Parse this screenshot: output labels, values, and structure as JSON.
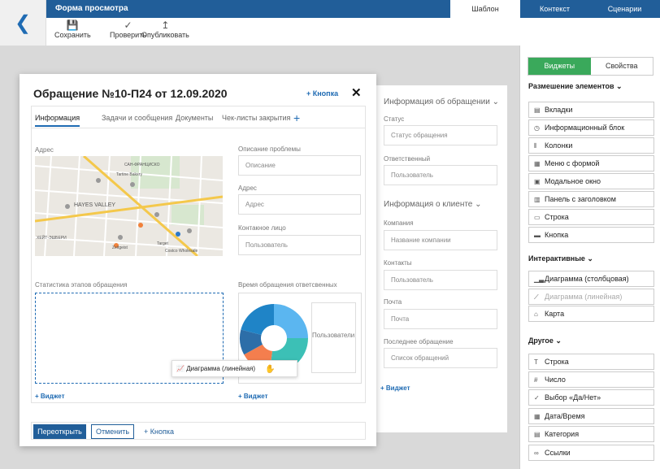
{
  "header": {
    "title": "Форма просмотра",
    "tabs": [
      {
        "label": "Шаблон",
        "active": true
      },
      {
        "label": "Контекст",
        "active": false
      },
      {
        "label": "Сценарии",
        "active": false
      }
    ]
  },
  "toolbar": {
    "save_label": "Сохранить",
    "check_label": "Проверить",
    "publish_label": "Опубликовать"
  },
  "modal": {
    "title": "Обращение №10-П24 от 12.09.2020",
    "add_button": "+ Кнопка",
    "close": "✕",
    "tabs": [
      "Информация",
      "Задачи и сообщения",
      "Документы",
      "Чек-листы закрытия"
    ],
    "tab_add": "+",
    "address_label": "Адрес",
    "map_labels": [
      "САН-ФРАНЦИСКО",
      "HAYES VALLEY",
      "ХЕЙТ-ЭШБЕРИ",
      "Target",
      "Costco Wholesale",
      "Tartine Bakery",
      "Zeitgeist"
    ],
    "fields": [
      {
        "label": "Описание проблемы",
        "placeholder": "Описание"
      },
      {
        "label": "Адрес",
        "placeholder": "Адрес"
      },
      {
        "label": "Контакное лицо",
        "placeholder": "Пользователь"
      }
    ],
    "stats_label": "Статистика этапов обращения",
    "time_label": "Время обращения ответсвенных",
    "widget_add": "+ Виджет",
    "users_label": "Пользователи",
    "drag_label": "Диаграмма (линейная)",
    "footer": {
      "reopen": "Переоткрыть",
      "cancel": "Отменить",
      "add_button": "+ Кнопка"
    }
  },
  "donut": {
    "colors": [
      "#5bb6f0",
      "#3cc0b6",
      "#f47e4e",
      "#2d6ea8",
      "#1f84c7"
    ],
    "values": [
      25,
      27,
      15,
      12,
      21
    ]
  },
  "bg_form": {
    "section1": "Информация об обращении",
    "status_label": "Статус",
    "status_placeholder": "Статус обращения",
    "resp_label": "Ответственный",
    "resp_placeholder": "Пользователь",
    "section2": "Информация о клиенте",
    "company_label": "Компания",
    "company_placeholder": "Название компании",
    "contacts_label": "Контакты",
    "contacts_placeholder": "Пользователь",
    "mail_label": "Почта",
    "mail_placeholder": "Почта",
    "last_label": "Последнее обращение",
    "last_placeholder": "Список обращений",
    "widget_add": "+ Виджет"
  },
  "right_panel": {
    "tabs": [
      {
        "label": "Виджеты",
        "active": true
      },
      {
        "label": "Свойства",
        "active": false
      }
    ],
    "sections": [
      {
        "title": "Размешение элементов",
        "items": [
          {
            "label": "Вкладки",
            "icon": "tabs-icon"
          },
          {
            "label": "Информационный блок",
            "icon": "info-block-icon"
          },
          {
            "label": "Колонки",
            "icon": "columns-icon"
          },
          {
            "label": "Меню с формой",
            "icon": "menu-form-icon"
          },
          {
            "label": "Модальное окно",
            "icon": "modal-icon"
          },
          {
            "label": "Панель с заголовком",
            "icon": "panel-icon"
          },
          {
            "label": "Строка",
            "icon": "row-icon"
          },
          {
            "label": "Кнопка",
            "icon": "button-icon"
          }
        ]
      },
      {
        "title": "Интерактивные",
        "items": [
          {
            "label": "Диаграмма (столбцовая)",
            "icon": "bar-chart-icon",
            "disabled": false
          },
          {
            "label": "Диаграмма (линейная)",
            "icon": "line-chart-icon",
            "disabled": true
          },
          {
            "label": "Карта",
            "icon": "map-icon",
            "disabled": false
          }
        ]
      },
      {
        "title": "Другое",
        "items": [
          {
            "label": "Строка",
            "icon": "text-icon"
          },
          {
            "label": "Число",
            "icon": "number-icon"
          },
          {
            "label": "Выбор «Да/Нет»",
            "icon": "check-icon"
          },
          {
            "label": "Дата/Время",
            "icon": "calendar-icon"
          },
          {
            "label": "Категория",
            "icon": "category-icon"
          },
          {
            "label": "Ссылки",
            "icon": "link-icon"
          }
        ]
      }
    ]
  }
}
